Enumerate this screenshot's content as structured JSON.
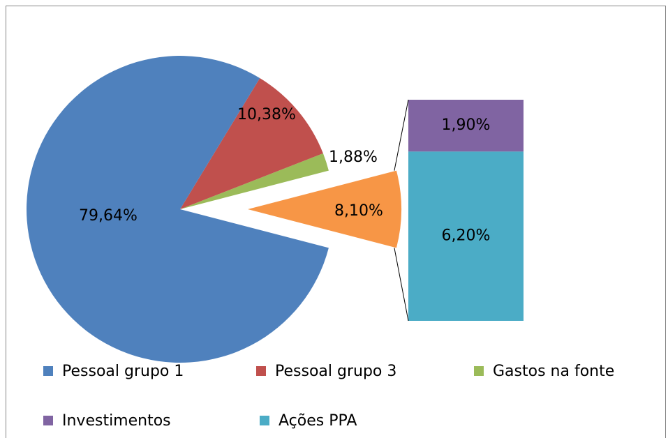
{
  "chart_data": {
    "type": "pie-of-bar",
    "categories": [
      "Pessoal grupo 1",
      "Pessoal grupo 3",
      "Gastos na fonte",
      null
    ],
    "values": [
      79.64,
      10.38,
      1.88,
      8.1
    ],
    "value_labels": [
      "79,64%",
      "10,38%",
      "1,88%",
      "8,10%"
    ],
    "colors": [
      "#4f81bd",
      "#c0504d",
      "#9bbb59",
      "#f79646"
    ],
    "secondary": {
      "categories": [
        "Investimentos",
        "Ações PPA"
      ],
      "values": [
        1.9,
        6.2
      ],
      "value_labels": [
        "1,90%",
        "6,20%"
      ],
      "colors": [
        "#8064a2",
        "#4bacc6"
      ]
    },
    "legend": "bottom"
  }
}
